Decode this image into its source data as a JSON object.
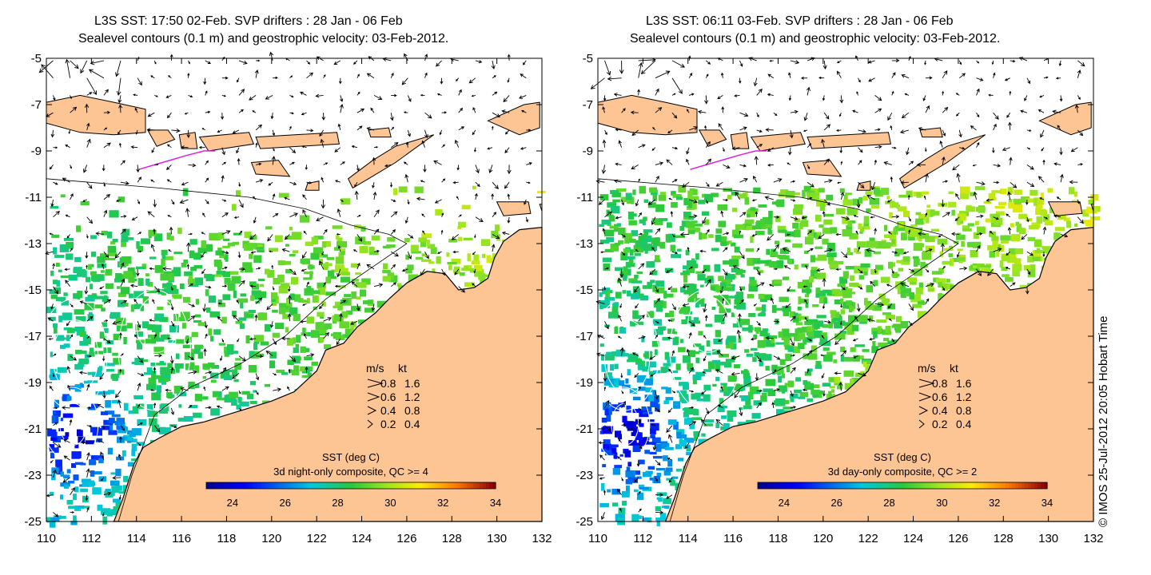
{
  "panels": [
    {
      "title_line1": "L3S SST: 17:50 02-Feb. SVP drifters : 28 Jan - 06 Feb",
      "title_line2": "Sealevel contours (0.1 m) and geostrophic velocity: 03-Feb-2012.",
      "colorbar_title": "SST (deg C)",
      "colorbar_subtitle": "3d night-only composite, QC >= 4",
      "colorbar_ticks": [
        "24",
        "26",
        "28",
        "30",
        "32",
        "34"
      ],
      "colorbar_range": [
        23,
        34
      ]
    },
    {
      "title_line1": "L3S SST: 06:11 03-Feb. SVP drifters : 28 Jan - 06 Feb",
      "title_line2": "Sealevel contours (0.1 m) and geostrophic velocity: 03-Feb-2012.",
      "colorbar_title": "SST (deg C)",
      "colorbar_subtitle": "3d day-only composite, QC >= 2",
      "colorbar_ticks": [
        "24",
        "26",
        "28",
        "30",
        "32",
        "34"
      ],
      "colorbar_range": [
        23,
        34
      ]
    }
  ],
  "axes": {
    "x_ticks": [
      "110",
      "112",
      "114",
      "116",
      "118",
      "120",
      "122",
      "124",
      "126",
      "128",
      "130",
      "132"
    ],
    "y_ticks": [
      "-5",
      "-7",
      "-9",
      "-11",
      "-13",
      "-15",
      "-17",
      "-19",
      "-21",
      "-23",
      "-25"
    ],
    "lon_range": [
      110,
      132
    ],
    "lat_range": [
      -25,
      -5
    ]
  },
  "legend": {
    "header_ms": "m/s",
    "header_kt": "kt",
    "rows": [
      {
        "ms": "0.8",
        "kt": "1.6"
      },
      {
        "ms": "0.6",
        "kt": "1.2"
      },
      {
        "ms": "0.4",
        "kt": "0.8"
      },
      {
        "ms": "0.2",
        "kt": "0.4"
      }
    ]
  },
  "credit": "© IMOS 25-Jul-2012 20:05 Hobart Time",
  "colors": {
    "land": "#fdc494",
    "sst_cold": "#00008f",
    "sst_warm": "#8b0000",
    "drifter": "#e020e0"
  }
}
